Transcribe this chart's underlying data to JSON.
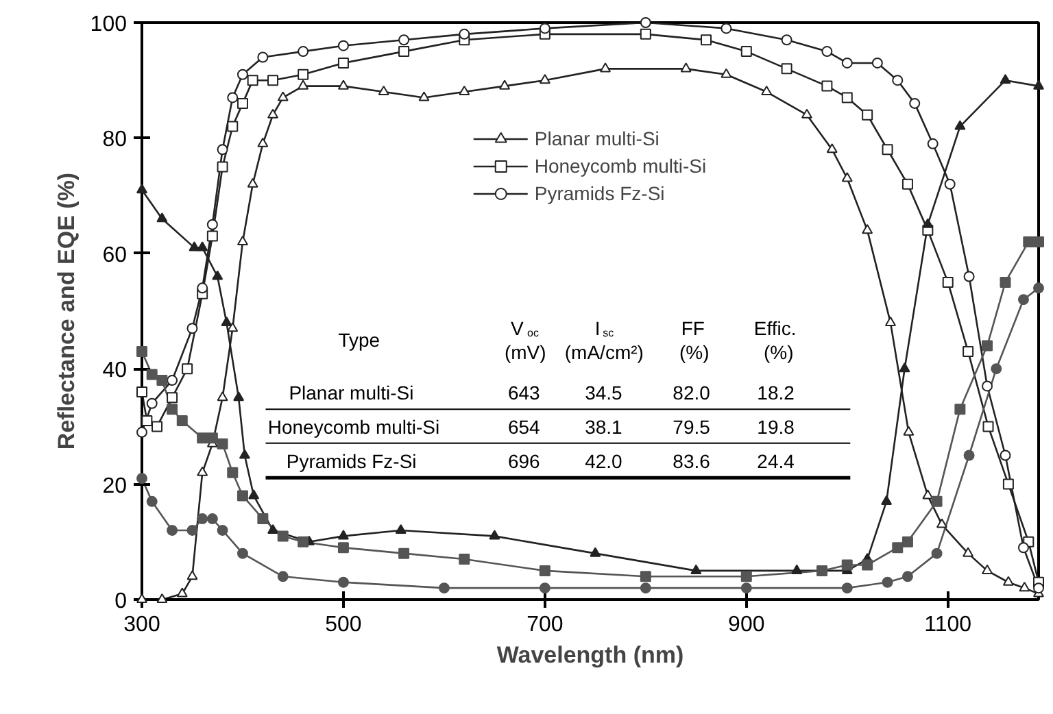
{
  "chart_data": {
    "type": "line",
    "xlabel": "Wavelength (nm)",
    "ylabel": "Reflectance and EQE (%)",
    "xlim": [
      300,
      1190
    ],
    "ylim": [
      0,
      100
    ],
    "xticks": [
      300,
      500,
      700,
      900,
      1100
    ],
    "yticks": [
      0,
      20,
      40,
      60,
      80,
      100
    ],
    "grid": false,
    "legend": "top",
    "line_style": "solid",
    "series": [
      {
        "name": "Planar multi-Si",
        "color": "#222222",
        "marker": "triangle",
        "x": [
          300,
          320,
          340,
          350,
          360,
          370,
          380,
          390,
          400,
          410,
          420,
          430,
          440,
          460,
          500,
          540,
          580,
          620,
          660,
          700,
          760,
          840,
          880,
          920,
          960,
          985,
          1000,
          1020,
          1043,
          1061,
          1080,
          1094,
          1120,
          1139,
          1160,
          1176,
          1190
        ],
        "values": [
          0,
          0,
          1,
          4,
          22,
          27,
          35,
          47,
          62,
          72,
          79,
          84,
          87,
          89,
          89,
          88,
          87,
          88,
          89,
          90,
          92,
          92,
          91,
          88,
          84,
          78,
          73,
          64,
          48,
          29,
          18,
          13,
          8,
          5,
          3,
          2,
          1
        ]
      },
      {
        "name": "Honeycomb multi-Si",
        "color": "#222222",
        "marker": "square",
        "x": [
          300,
          305,
          315,
          330,
          345,
          360,
          370,
          380,
          390,
          400,
          410,
          430,
          460,
          500,
          560,
          620,
          700,
          800,
          860,
          900,
          940,
          980,
          1000,
          1020,
          1040,
          1060,
          1080,
          1100,
          1120,
          1140,
          1160,
          1180,
          1190
        ],
        "values": [
          36,
          31,
          30,
          35,
          40,
          53,
          63,
          75,
          82,
          86,
          90,
          90,
          91,
          93,
          95,
          97,
          98,
          98,
          97,
          95,
          92,
          89,
          87,
          84,
          78,
          72,
          64,
          55,
          43,
          30,
          20,
          10,
          3
        ]
      },
      {
        "name": "Pyramids Fz-Si",
        "color": "#222222",
        "marker": "circle",
        "x": [
          300,
          310,
          330,
          350,
          360,
          370,
          380,
          390,
          400,
          420,
          460,
          500,
          560,
          620,
          700,
          800,
          880,
          940,
          980,
          1000,
          1030,
          1050,
          1067,
          1085,
          1102,
          1121,
          1139,
          1157,
          1175,
          1190
        ],
        "values": [
          29,
          34,
          38,
          47,
          54,
          65,
          78,
          87,
          91,
          94,
          95,
          96,
          97,
          98,
          99,
          100,
          99,
          97,
          95,
          93,
          93,
          90,
          86,
          79,
          72,
          56,
          37,
          25,
          9,
          2
        ]
      },
      {
        "color": "#222222",
        "marker": "triangle",
        "x": [
          300,
          320,
          352,
          360,
          375,
          384,
          396,
          402,
          411,
          430,
          466,
          500,
          557,
          650,
          750,
          850,
          950,
          1000,
          1020,
          1039,
          1057,
          1080,
          1112,
          1157,
          1190
        ],
        "values": [
          71,
          66,
          61,
          61,
          56,
          48,
          35,
          25,
          18,
          12,
          10,
          11,
          12,
          11,
          8,
          5,
          5,
          5,
          7,
          17,
          40,
          65,
          82,
          90,
          89
        ]
      },
      {
        "color": "#555555",
        "marker": "square",
        "x": [
          300,
          310,
          320,
          330,
          340,
          360,
          370,
          380,
          390,
          400,
          420,
          440,
          460,
          500,
          560,
          620,
          700,
          800,
          900,
          975,
          1000,
          1020,
          1050,
          1060,
          1089,
          1112,
          1139,
          1157,
          1180,
          1190
        ],
        "values": [
          43,
          39,
          38,
          33,
          31,
          28,
          28,
          27,
          22,
          18,
          14,
          11,
          10,
          9,
          8,
          7,
          5,
          4,
          4,
          5,
          6,
          6,
          9,
          10,
          17,
          33,
          44,
          55,
          62,
          62
        ]
      },
      {
        "color": "#555555",
        "marker": "circle",
        "x": [
          300,
          310,
          330,
          350,
          360,
          370,
          380,
          400,
          440,
          500,
          600,
          700,
          800,
          900,
          1000,
          1040,
          1060,
          1089,
          1121,
          1148,
          1175,
          1190
        ],
        "values": [
          21,
          17,
          12,
          12,
          14,
          14,
          12,
          8,
          4,
          3,
          2,
          2,
          2,
          2,
          2,
          3,
          4,
          8,
          25,
          40,
          52,
          54
        ]
      }
    ],
    "annotations": [
      "Type",
      "V$_{oc}$\n(mV)",
      "I$_{sc}$\n(mA/cm²)",
      "FF\n(%)",
      "Effic.\n(%)",
      "Planar multi-Si",
      "643",
      "34.5",
      "82.0",
      "18.2",
      "Honeycomb multi-Si",
      "654",
      "38.1",
      "79.5",
      "19.8",
      "Pyramids Fz-Si",
      "696",
      "42.0",
      "83.6",
      "24.4"
    ]
  }
}
